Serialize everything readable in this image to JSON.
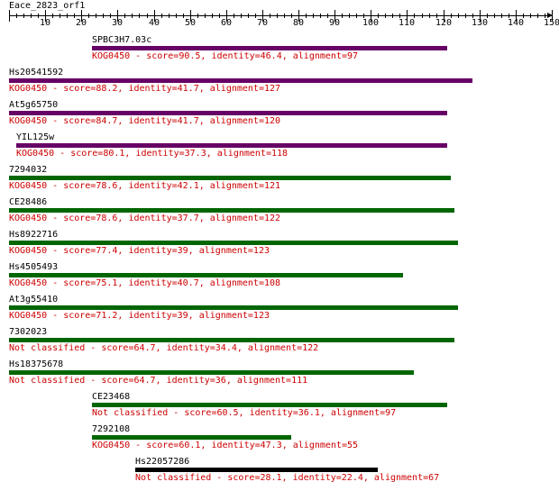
{
  "query": {
    "title": "Eace_2823_orf1",
    "ruler": {
      "min": 0,
      "max": 150,
      "labels": [
        10,
        20,
        30,
        40,
        50,
        60,
        70,
        80,
        90,
        100,
        110,
        120,
        130,
        140,
        150
      ]
    }
  },
  "colors": {
    "purple": "#660066",
    "green": "#006600",
    "black": "#000000",
    "label": "#cc0000"
  },
  "hits": [
    {
      "name": "SPBC3H7.03c",
      "start": 23,
      "end": 121,
      "color": "purple",
      "info": "KOG0450 - score=90.5, identity=46.4, alignment=97"
    },
    {
      "name": "Hs20541592",
      "start": 0,
      "end": 128,
      "color": "purple",
      "info": "KOG0450 - score=88.2, identity=41.7, alignment=127"
    },
    {
      "name": "At5g65750",
      "start": 0,
      "end": 121,
      "color": "purple",
      "info": "KOG0450 - score=84.7, identity=41.7, alignment=120"
    },
    {
      "name": "YIL125w",
      "start": 2,
      "end": 121,
      "color": "purple",
      "info": "KOG0450 - score=80.1, identity=37.3, alignment=118"
    },
    {
      "name": "7294032",
      "start": 0,
      "end": 122,
      "color": "green",
      "info": "KOG0450 - score=78.6, identity=42.1, alignment=121"
    },
    {
      "name": "CE28486",
      "start": 0,
      "end": 123,
      "color": "green",
      "info": "KOG0450 - score=78.6, identity=37.7, alignment=122"
    },
    {
      "name": "Hs8922716",
      "start": 0,
      "end": 124,
      "color": "green",
      "info": "KOG0450 - score=77.4, identity=39, alignment=123"
    },
    {
      "name": "Hs4505493",
      "start": 0,
      "end": 109,
      "color": "green",
      "info": "KOG0450 - score=75.1, identity=40.7, alignment=108"
    },
    {
      "name": "At3g55410",
      "start": 0,
      "end": 124,
      "color": "green",
      "info": "KOG0450 - score=71.2, identity=39, alignment=123"
    },
    {
      "name": "7302023",
      "start": 0,
      "end": 123,
      "color": "green",
      "info": "Not classified - score=64.7, identity=34.4, alignment=122"
    },
    {
      "name": "Hs18375678",
      "start": 0,
      "end": 112,
      "color": "green",
      "info": "Not classified - score=64.7, identity=36, alignment=111"
    },
    {
      "name": "CE23468",
      "start": 23,
      "end": 121,
      "color": "green",
      "info": "Not classified - score=60.5, identity=36.1, alignment=97"
    },
    {
      "name": "7292108",
      "start": 23,
      "end": 78,
      "color": "green",
      "info": "KOG0450 - score=60.1, identity=47.3, alignment=55"
    },
    {
      "name": "Hs22057286",
      "start": 35,
      "end": 102,
      "color": "black",
      "info": "Not classified - score=28.1, identity=22.4, alignment=67"
    }
  ]
}
